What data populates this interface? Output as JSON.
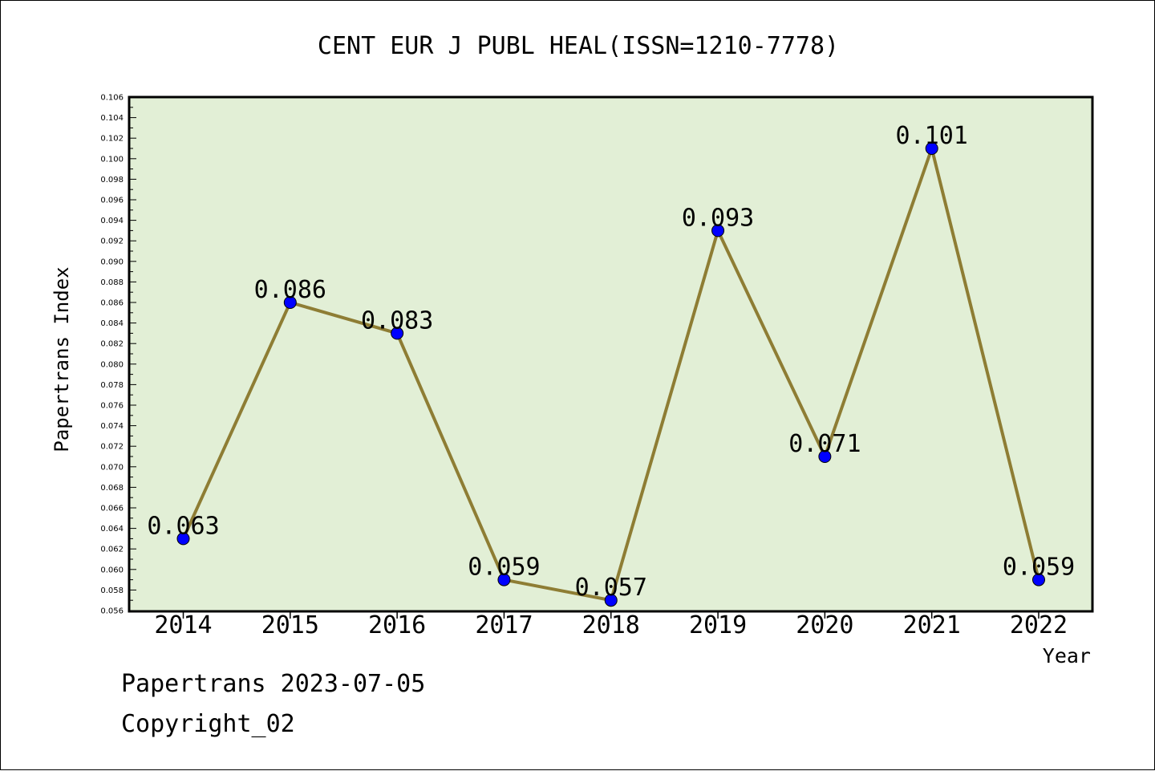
{
  "chart_data": {
    "type": "line",
    "title": "CENT EUR J PUBL HEAL(ISSN=1210-7778)",
    "xlabel": "Year",
    "ylabel": "Papertrans Index",
    "categories": [
      "2014",
      "2015",
      "2016",
      "2017",
      "2018",
      "2019",
      "2020",
      "2021",
      "2022"
    ],
    "series": [
      {
        "values": [
          0.063,
          0.086,
          0.083,
          0.059,
          0.057,
          0.093,
          0.071,
          0.101,
          0.059
        ],
        "labels": [
          "0.063",
          "0.086",
          "0.083",
          "0.059",
          "0.057",
          "0.093",
          "0.071",
          "0.101",
          "0.059"
        ]
      }
    ],
    "ylim": [
      0.056,
      0.106
    ],
    "ystep": 0.002,
    "grid": false,
    "colors": {
      "plot_background": "#e2efd6",
      "line": "#8e7d34",
      "marker": "#0000ff"
    }
  },
  "footer": {
    "line1": "Papertrans 2023-07-05",
    "line2": "Copyright_02"
  }
}
